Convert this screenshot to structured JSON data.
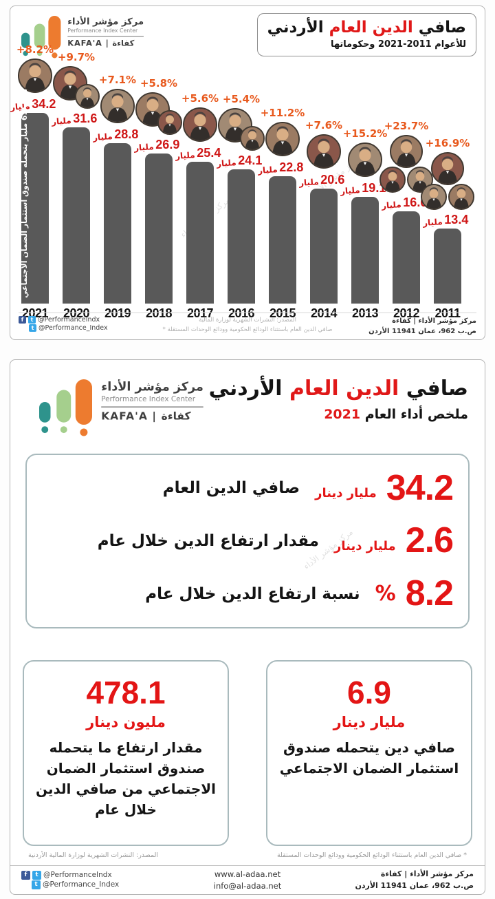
{
  "brand": {
    "name_ar": "مركز مؤشر الأداء",
    "name_en": "Performance Index Center",
    "tagline": "KAFA'A | كفاءة"
  },
  "watermark": "مركز مؤشر الأداء",
  "top_panel": {
    "title": {
      "black1": "صافي",
      "red": "الدين العام",
      "black2": "الأردني"
    },
    "subtitle": "للأعوام 2011-2021 وحكوماتها",
    "bar_note": "منها 6.9 مليار يتحمله صندوق استثمار الضمان الاجتماعي",
    "source_note1": "المصدر: النشرات الشهرية لوزارة المالية",
    "source_note2": "* صافي الدين العام باستثناء الودائع الحكومية وودائع الوحدات المستقلة",
    "footer": {
      "social1": "@PerformanceIndx",
      "social2": "@Performance_Index",
      "org": "مركز مؤشر الأداء | كفاءة",
      "address": "ص.ب 962، عمان 11941 الأردن"
    }
  },
  "chart_data": {
    "type": "bar",
    "title": "صافي الدين العام الأردني للأعوام 2011-2021 وحكوماتها",
    "categories": [
      "2021",
      "2020",
      "2019",
      "2018",
      "2017",
      "2016",
      "2015",
      "2014",
      "2013",
      "2012",
      "2011"
    ],
    "values": [
      34.2,
      31.6,
      28.8,
      26.9,
      25.4,
      24.1,
      22.8,
      20.6,
      19.1,
      16.6,
      13.4
    ],
    "pct_change": [
      "+8.2%",
      "+9.7%",
      "+7.1%",
      "+5.8%",
      "+5.6%",
      "+5.4%",
      "+11.2%",
      "+7.6%",
      "+15.2%",
      "+23.7%",
      "+16.9%"
    ],
    "value_suffix": "مليار",
    "unit": "مليار دينار",
    "photo_counts": [
      1,
      2,
      1,
      2,
      1,
      2,
      1,
      1,
      1,
      3,
      3
    ],
    "ylim": [
      0,
      36
    ],
    "grid": false,
    "legend": false,
    "bar_color": "#595959",
    "value_color": "#cf1717",
    "pct_color": "#e8591d"
  },
  "bottom_panel": {
    "title": {
      "black1": "صافي",
      "red": "الدين العام",
      "black2": "الأردني"
    },
    "subtitle_black": "ملخص أداء العام",
    "subtitle_red": "2021",
    "stats": [
      {
        "value": "34.2",
        "unit": "مليار دينار",
        "label": "صافي الدين العام"
      },
      {
        "value": "2.6",
        "unit": "مليار دينار",
        "label": "مقدار ارتفاع الدين خلال عام"
      },
      {
        "value": "8.2",
        "unit": "%",
        "label": "نسبة ارتفاع الدين خلال عام"
      }
    ],
    "boxes": [
      {
        "value": "478.1",
        "unit": "مليون دينار",
        "label": "مقدار ارتفاع ما يتحمله صندوق استثمار الضمان الاجتماعي من صافي الدين خلال عام"
      },
      {
        "value": "6.9",
        "unit": "مليار دينار",
        "label": "صافي دين يتحمله صندوق استثمار الضمان الاجتماعي"
      }
    ],
    "note_left": "المصدر: النشرات الشهرية لوزارة المالية الأردنية",
    "note_right": "* صافي الدين العام باستثناء الودائع الحكومية وودائع الوحدات المستقلة",
    "footer": {
      "social1": "@PerformanceIndx",
      "social2": "@Performance_Index",
      "website": "www.al-adaa.net",
      "email": "info@al-adaa.net",
      "org": "مركز مؤشر الأداء | كفاءة",
      "address": "ص.ب 962، عمان 11941 الأردن"
    }
  }
}
